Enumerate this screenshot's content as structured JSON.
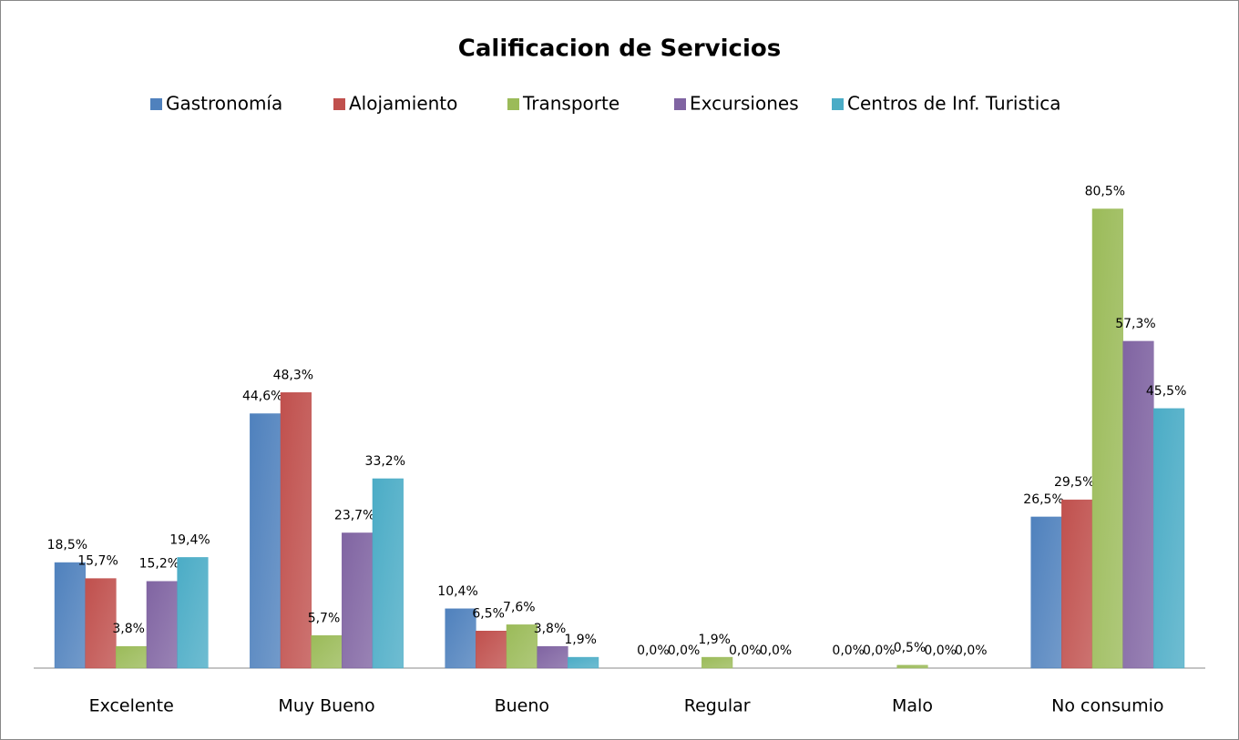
{
  "chart_data": {
    "type": "bar",
    "title": "Calificacion de Servicios",
    "categories": [
      "Excelente",
      "Muy Bueno",
      "Bueno",
      "Regular",
      "Malo",
      "No consumio"
    ],
    "ylim": [
      0,
      90
    ],
    "legend": "top",
    "series": [
      {
        "name": "Gastronomía",
        "color": "#4f81bd",
        "values": [
          18.5,
          44.6,
          10.4,
          0.0,
          0.0,
          26.5
        ],
        "value_labels": [
          "18,5%",
          "44,6%",
          "10,4%",
          "0,0%",
          "0,0%",
          "26,5%"
        ]
      },
      {
        "name": "Alojamiento",
        "color": "#c0504d",
        "values": [
          15.7,
          48.3,
          6.5,
          0.0,
          0.0,
          29.5
        ],
        "value_labels": [
          "15,7%",
          "48,3%",
          "6,5%",
          "0,0%",
          "0,0%",
          "29,5%"
        ]
      },
      {
        "name": "Transporte",
        "color": "#9bbb59",
        "values": [
          3.8,
          5.7,
          7.6,
          1.9,
          0.5,
          80.5
        ],
        "value_labels": [
          "3,8%",
          "5,7%",
          "7,6%",
          "1,9%",
          "0,5%",
          "80,5%"
        ]
      },
      {
        "name": "Excursiones",
        "color": "#8064a2",
        "values": [
          15.2,
          23.7,
          3.8,
          0.0,
          0.0,
          57.3
        ],
        "value_labels": [
          "15,2%",
          "23,7%",
          "3,8%",
          "0,0%",
          "0,0%",
          "57,3%"
        ]
      },
      {
        "name": "Centros de Inf. Turistica",
        "color": "#4bacc6",
        "values": [
          19.4,
          33.2,
          1.9,
          0.0,
          0.0,
          45.5
        ],
        "value_labels": [
          "19,4%",
          "33,2%",
          "1,9%",
          "0,0%",
          "0,0%",
          "45,5%"
        ]
      }
    ]
  }
}
